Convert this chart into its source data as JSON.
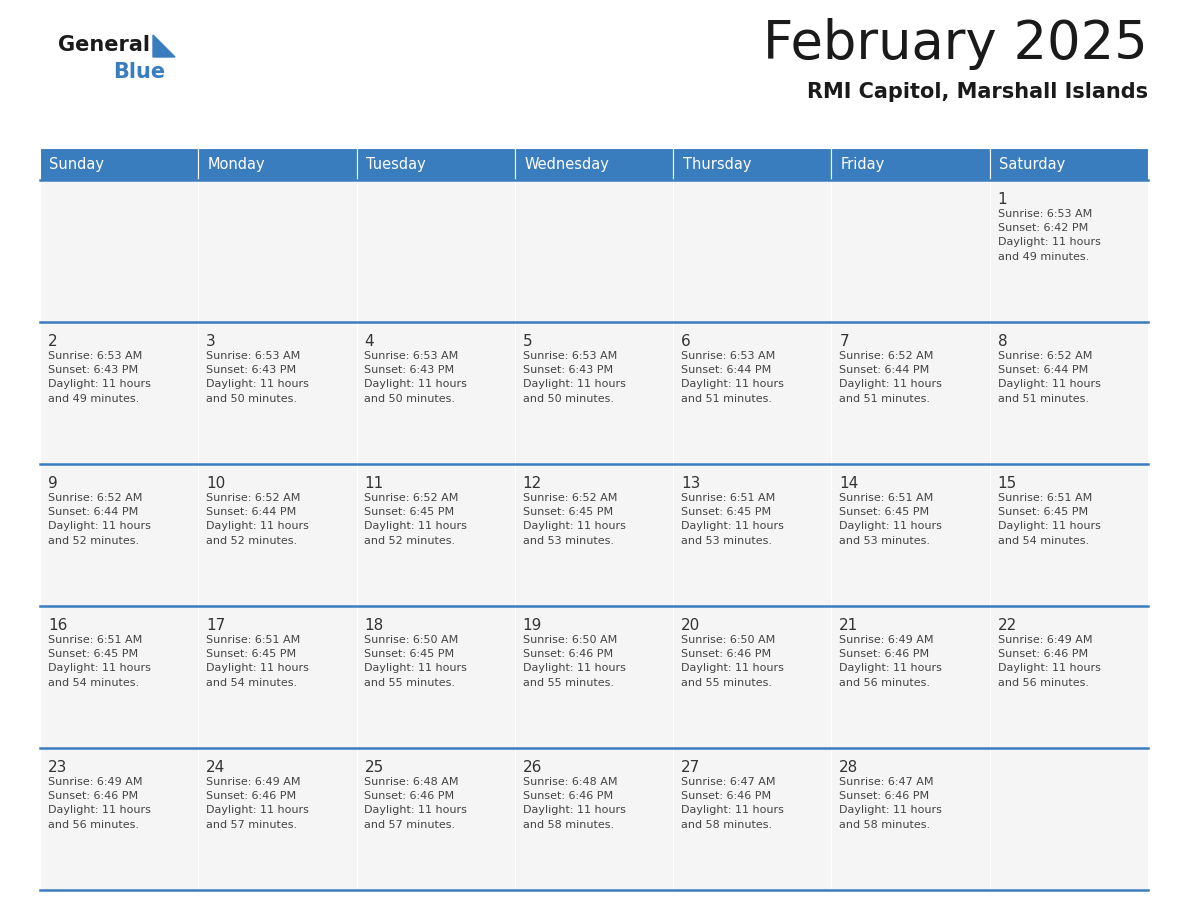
{
  "title": "February 2025",
  "subtitle": "RMI Capitol, Marshall Islands",
  "header_color": "#3a7dbf",
  "header_text_color": "#ffffff",
  "cell_bg_color": "#f5f5f5",
  "day_number_color": "#333333",
  "info_text_color": "#444444",
  "border_color": "#3a7dbf",
  "days_of_week": [
    "Sunday",
    "Monday",
    "Tuesday",
    "Wednesday",
    "Thursday",
    "Friday",
    "Saturday"
  ],
  "weeks": [
    [
      {
        "day": 0,
        "info": ""
      },
      {
        "day": 0,
        "info": ""
      },
      {
        "day": 0,
        "info": ""
      },
      {
        "day": 0,
        "info": ""
      },
      {
        "day": 0,
        "info": ""
      },
      {
        "day": 0,
        "info": ""
      },
      {
        "day": 1,
        "info": "Sunrise: 6:53 AM\nSunset: 6:42 PM\nDaylight: 11 hours\nand 49 minutes."
      }
    ],
    [
      {
        "day": 2,
        "info": "Sunrise: 6:53 AM\nSunset: 6:43 PM\nDaylight: 11 hours\nand 49 minutes."
      },
      {
        "day": 3,
        "info": "Sunrise: 6:53 AM\nSunset: 6:43 PM\nDaylight: 11 hours\nand 50 minutes."
      },
      {
        "day": 4,
        "info": "Sunrise: 6:53 AM\nSunset: 6:43 PM\nDaylight: 11 hours\nand 50 minutes."
      },
      {
        "day": 5,
        "info": "Sunrise: 6:53 AM\nSunset: 6:43 PM\nDaylight: 11 hours\nand 50 minutes."
      },
      {
        "day": 6,
        "info": "Sunrise: 6:53 AM\nSunset: 6:44 PM\nDaylight: 11 hours\nand 51 minutes."
      },
      {
        "day": 7,
        "info": "Sunrise: 6:52 AM\nSunset: 6:44 PM\nDaylight: 11 hours\nand 51 minutes."
      },
      {
        "day": 8,
        "info": "Sunrise: 6:52 AM\nSunset: 6:44 PM\nDaylight: 11 hours\nand 51 minutes."
      }
    ],
    [
      {
        "day": 9,
        "info": "Sunrise: 6:52 AM\nSunset: 6:44 PM\nDaylight: 11 hours\nand 52 minutes."
      },
      {
        "day": 10,
        "info": "Sunrise: 6:52 AM\nSunset: 6:44 PM\nDaylight: 11 hours\nand 52 minutes."
      },
      {
        "day": 11,
        "info": "Sunrise: 6:52 AM\nSunset: 6:45 PM\nDaylight: 11 hours\nand 52 minutes."
      },
      {
        "day": 12,
        "info": "Sunrise: 6:52 AM\nSunset: 6:45 PM\nDaylight: 11 hours\nand 53 minutes."
      },
      {
        "day": 13,
        "info": "Sunrise: 6:51 AM\nSunset: 6:45 PM\nDaylight: 11 hours\nand 53 minutes."
      },
      {
        "day": 14,
        "info": "Sunrise: 6:51 AM\nSunset: 6:45 PM\nDaylight: 11 hours\nand 53 minutes."
      },
      {
        "day": 15,
        "info": "Sunrise: 6:51 AM\nSunset: 6:45 PM\nDaylight: 11 hours\nand 54 minutes."
      }
    ],
    [
      {
        "day": 16,
        "info": "Sunrise: 6:51 AM\nSunset: 6:45 PM\nDaylight: 11 hours\nand 54 minutes."
      },
      {
        "day": 17,
        "info": "Sunrise: 6:51 AM\nSunset: 6:45 PM\nDaylight: 11 hours\nand 54 minutes."
      },
      {
        "day": 18,
        "info": "Sunrise: 6:50 AM\nSunset: 6:45 PM\nDaylight: 11 hours\nand 55 minutes."
      },
      {
        "day": 19,
        "info": "Sunrise: 6:50 AM\nSunset: 6:46 PM\nDaylight: 11 hours\nand 55 minutes."
      },
      {
        "day": 20,
        "info": "Sunrise: 6:50 AM\nSunset: 6:46 PM\nDaylight: 11 hours\nand 55 minutes."
      },
      {
        "day": 21,
        "info": "Sunrise: 6:49 AM\nSunset: 6:46 PM\nDaylight: 11 hours\nand 56 minutes."
      },
      {
        "day": 22,
        "info": "Sunrise: 6:49 AM\nSunset: 6:46 PM\nDaylight: 11 hours\nand 56 minutes."
      }
    ],
    [
      {
        "day": 23,
        "info": "Sunrise: 6:49 AM\nSunset: 6:46 PM\nDaylight: 11 hours\nand 56 minutes."
      },
      {
        "day": 24,
        "info": "Sunrise: 6:49 AM\nSunset: 6:46 PM\nDaylight: 11 hours\nand 57 minutes."
      },
      {
        "day": 25,
        "info": "Sunrise: 6:48 AM\nSunset: 6:46 PM\nDaylight: 11 hours\nand 57 minutes."
      },
      {
        "day": 26,
        "info": "Sunrise: 6:48 AM\nSunset: 6:46 PM\nDaylight: 11 hours\nand 58 minutes."
      },
      {
        "day": 27,
        "info": "Sunrise: 6:47 AM\nSunset: 6:46 PM\nDaylight: 11 hours\nand 58 minutes."
      },
      {
        "day": 28,
        "info": "Sunrise: 6:47 AM\nSunset: 6:46 PM\nDaylight: 11 hours\nand 58 minutes."
      },
      {
        "day": 0,
        "info": ""
      }
    ]
  ]
}
